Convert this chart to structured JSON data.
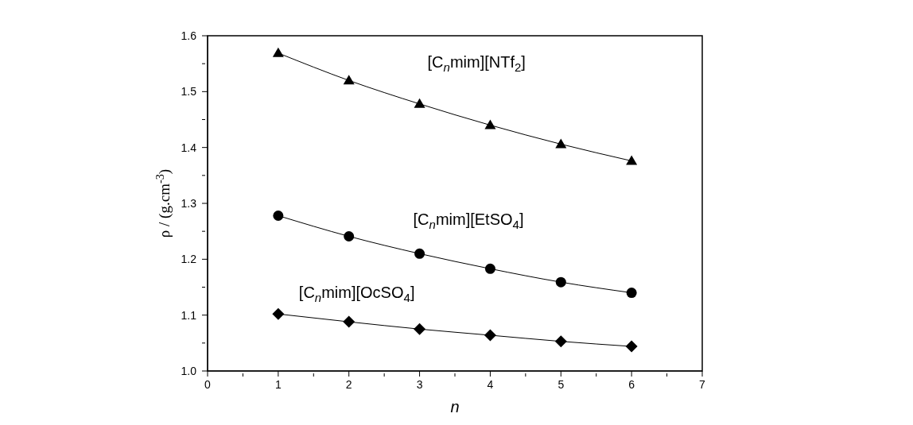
{
  "chart_data": {
    "type": "line",
    "xlabel": "n",
    "ylabel": "ρ / (g.cm$^{-3}$)",
    "x": [
      1,
      2,
      3,
      4,
      5,
      6
    ],
    "series": [
      {
        "name": "[C$_{n}$mim][NTf$_{2}$]",
        "color": "#000000",
        "marker": "triangle",
        "values": [
          1.569,
          1.52,
          1.478,
          1.44,
          1.406,
          1.376
        ]
      },
      {
        "name": "[C$_{n}$mim][EtSO$_{4}$]",
        "color": "#000000",
        "marker": "circle",
        "values": [
          1.278,
          1.241,
          1.21,
          1.183,
          1.159,
          1.14
        ]
      },
      {
        "name": "[C$_{n}$mim][OcSO$_{4}$]",
        "color": "#000000",
        "marker": "diamond",
        "values": [
          1.102,
          1.088,
          1.075,
          1.064,
          1.053,
          1.044
        ]
      }
    ],
    "xlim": [
      0,
      7
    ],
    "ylim": [
      1.0,
      1.6
    ],
    "xticks": [
      0,
      {
        "value": 0.5,
        "label": null
      },
      1,
      {
        "value": 1.5,
        "label": null
      },
      2,
      {
        "value": 2.5,
        "label": null
      },
      3,
      {
        "value": 3.5,
        "label": null
      },
      4,
      {
        "value": 4.5,
        "label": null
      },
      5,
      {
        "value": 5.5,
        "label": null
      },
      6,
      {
        "value": 6.5,
        "label": null
      },
      7
    ],
    "yticks": [
      {
        "value": 1.0,
        "label": "1.0"
      },
      {
        "value": 1.05,
        "label": null
      },
      1.1,
      {
        "value": 1.15,
        "label": null
      },
      1.2,
      {
        "value": 1.25,
        "label": null
      },
      1.3,
      {
        "value": 1.35,
        "label": null
      },
      1.4,
      {
        "value": 1.45,
        "label": null
      },
      1.5,
      {
        "value": 1.55,
        "label": null
      },
      1.6
    ],
    "line_style": "solid"
  }
}
